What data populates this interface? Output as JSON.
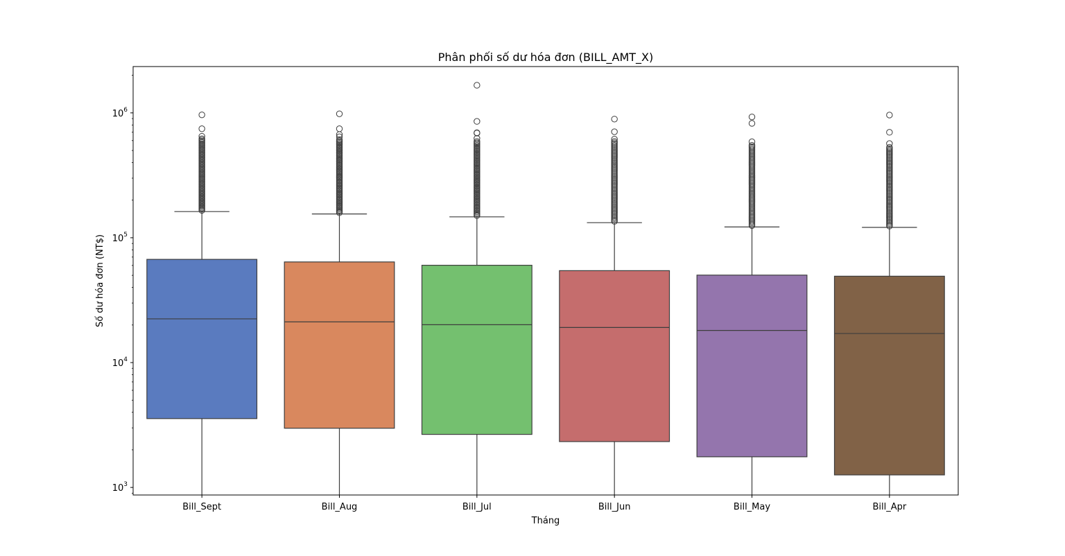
{
  "chart_data": {
    "type": "box",
    "title": "Phân phối số dư hóa đơn (BILL_AMT_X)",
    "xlabel": "Tháng",
    "ylabel": "Số dư hóa đơn (NT$)",
    "yscale": "log",
    "ylim": [
      870,
      2350000
    ],
    "yticks": [
      {
        "value": 1000,
        "base": "10",
        "exp": "3"
      },
      {
        "value": 10000,
        "base": "10",
        "exp": "4"
      },
      {
        "value": 100000,
        "base": "10",
        "exp": "5"
      },
      {
        "value": 1000000,
        "base": "10",
        "exp": "6"
      }
    ],
    "grid": false,
    "legend": "none",
    "categories": [
      "Bill_Sept",
      "Bill_Aug",
      "Bill_Jul",
      "Bill_Jun",
      "Bill_May",
      "Bill_Apr"
    ],
    "boxes": [
      {
        "category": "Bill_Sept",
        "color": "#5a7bbf",
        "whisker_low": 0,
        "q1": 3560,
        "median": 22400,
        "q3": 67100,
        "whisker_high": 162000,
        "outlier_dense_max": 620000,
        "outliers": [
          650000,
          746000,
          964000
        ]
      },
      {
        "category": "Bill_Aug",
        "color": "#d9885e",
        "whisker_low": 0,
        "q1": 2980,
        "median": 21200,
        "q3": 64000,
        "whisker_high": 155000,
        "outlier_dense_max": 610000,
        "outliers": [
          643000,
          671000,
          746000,
          983000
        ]
      },
      {
        "category": "Bill_Jul",
        "color": "#74c06f",
        "whisker_low": 0,
        "q1": 2660,
        "median": 20100,
        "q3": 60200,
        "whisker_high": 147000,
        "outlier_dense_max": 590000,
        "outliers": [
          625000,
          689000,
          693000,
          855000,
          1665000
        ]
      },
      {
        "category": "Bill_Jun",
        "color": "#c56d6d",
        "whisker_low": 0,
        "q1": 2330,
        "median": 19100,
        "q3": 54500,
        "whisker_high": 132000,
        "outlier_dense_max": 590000,
        "outliers": [
          616000,
          706000,
          892000
        ]
      },
      {
        "category": "Bill_May",
        "color": "#9475ad",
        "whisker_low": 0,
        "q1": 1760,
        "median": 18100,
        "q3": 50200,
        "whisker_high": 122000,
        "outlier_dense_max": 550000,
        "outliers": [
          587000,
          824000,
          928000
        ]
      },
      {
        "category": "Bill_Apr",
        "color": "#816247",
        "whisker_low": 0,
        "q1": 1260,
        "median": 17100,
        "q3": 49200,
        "whisker_high": 121000,
        "outlier_dense_max": 530000,
        "outliers": [
          568000,
          699000,
          961000
        ]
      }
    ]
  }
}
